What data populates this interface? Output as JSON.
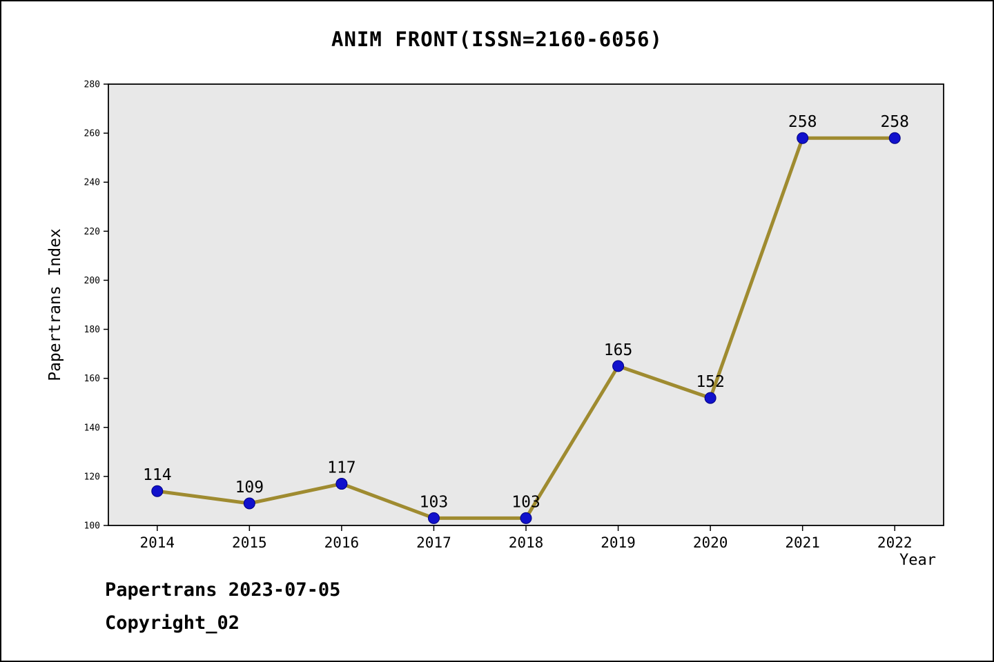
{
  "title": "ANIM FRONT(ISSN=2160-6056)",
  "footer": {
    "line1": "Papertrans 2023-07-05",
    "line2": "Copyright_02"
  },
  "chart_data": {
    "type": "line",
    "title": "ANIM FRONT(ISSN=2160-6056)",
    "x": [
      2014,
      2015,
      2016,
      2017,
      2018,
      2019,
      2020,
      2021,
      2022
    ],
    "values": [
      114,
      109,
      117,
      103,
      103,
      165,
      152,
      258,
      258
    ],
    "xlabel": "Year",
    "ylabel": "Papertrans Index",
    "ylim": [
      100,
      280
    ],
    "yticks": [
      100,
      120,
      140,
      160,
      180,
      200,
      220,
      240,
      260,
      280
    ],
    "grid": false,
    "legend": "none",
    "point_labels_shown": true,
    "colors": {
      "line": "#9f8b30",
      "marker_fill": "#1111cc",
      "marker_edge": "#000080",
      "plot_background": "#e8e8e8",
      "axis": "#000000",
      "text": "#000000"
    }
  }
}
